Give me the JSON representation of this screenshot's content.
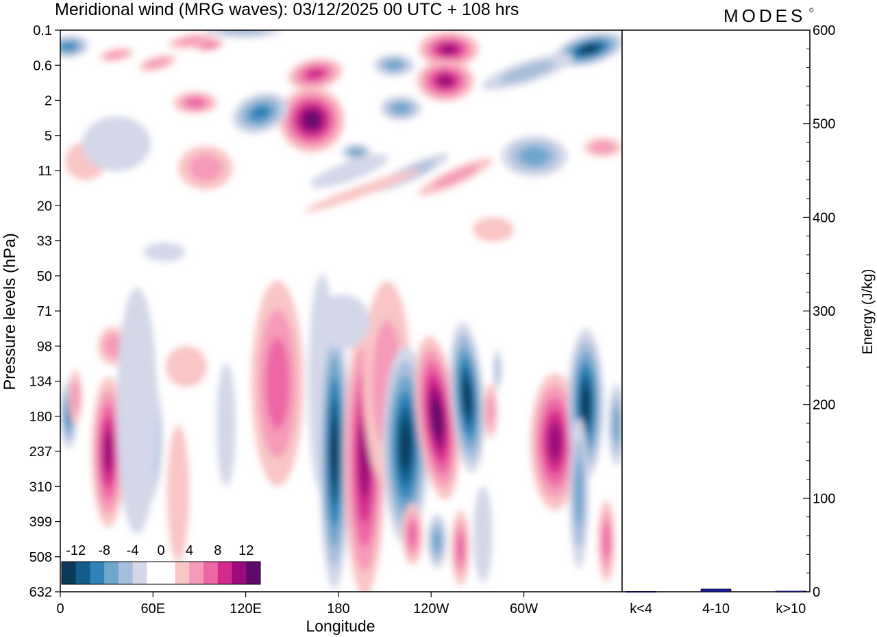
{
  "chart_data": {
    "type": "heatmap",
    "title": "Meridional wind (MRG waves):  03/12/2025  00 UTC  + 108 hrs",
    "brand": "MODES",
    "brand_mark": "©",
    "xlabel": "Longitude",
    "ylabel": "Pressure levels (hPa)",
    "x_ticks": [
      "0",
      "60E",
      "120E",
      "180",
      "120W",
      "60W"
    ],
    "y_ticks": [
      "0.1",
      "0.6",
      "2",
      "5",
      "11",
      "20",
      "33",
      "50",
      "71",
      "98",
      "134",
      "180",
      "237",
      "310",
      "399",
      "508",
      "632"
    ],
    "colorbar": {
      "labels": [
        "-12",
        "-8",
        "-4",
        "0",
        "4",
        "8",
        "12"
      ],
      "colors": [
        "#0d3a5a",
        "#115e8c",
        "#2f83b8",
        "#6ea6cc",
        "#a6bedb",
        "#d3d7e8",
        "#ffffff",
        "#ffffff",
        "#f9c5c5",
        "#f59ab8",
        "#ec65a4",
        "#d32a8e",
        "#9c0a7b",
        "#5e0a6a"
      ]
    },
    "energy_panel": {
      "ylabel": "Energy (J/kg)",
      "ylim": [
        0,
        600
      ],
      "y_ticks": [
        "0",
        "100",
        "200",
        "300",
        "400",
        "500",
        "600"
      ],
      "categories": [
        "k<4",
        "4-10",
        "k>10"
      ],
      "values": [
        0.5,
        3,
        0.8
      ],
      "bar_color": "#1c1c9c"
    }
  }
}
